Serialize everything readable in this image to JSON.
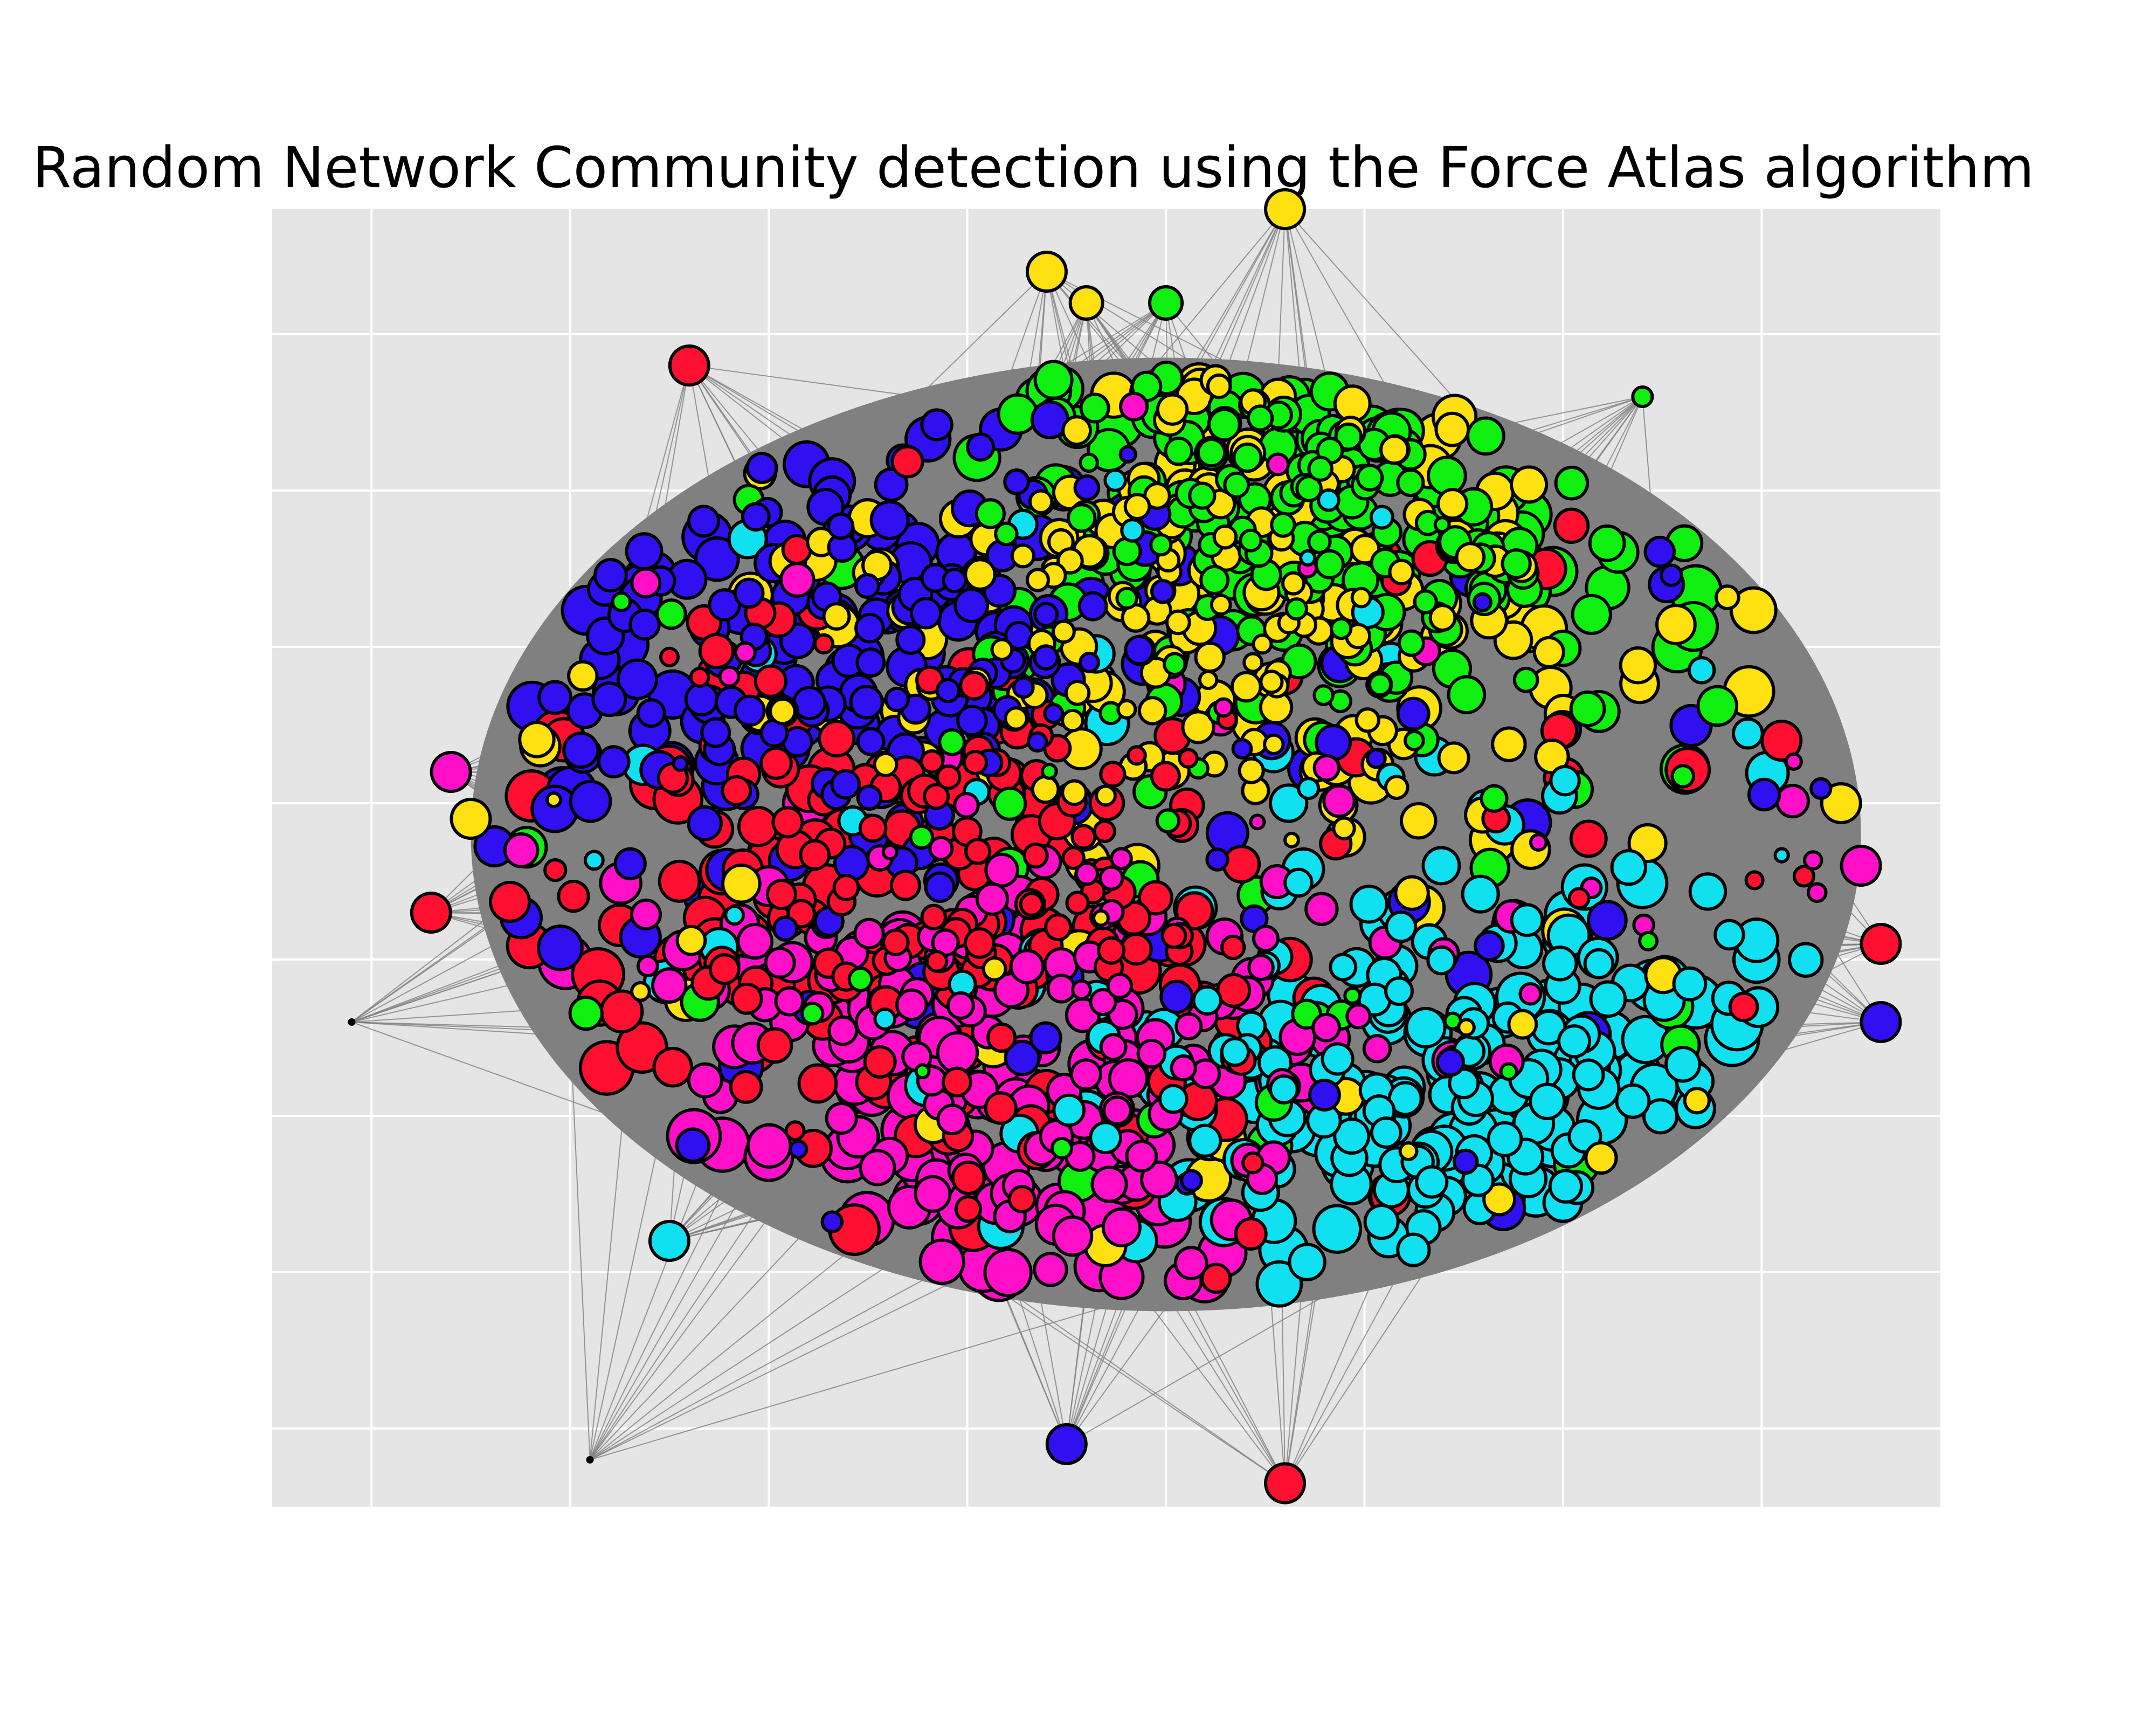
{
  "title": "Random Network Community detection using the Force Atlas algorithm",
  "style": {
    "background": "#e5e5e5",
    "grid_color": "#ffffff",
    "edge_color": "#808080",
    "node_stroke": "#000000"
  },
  "communities": [
    {
      "name": "red",
      "color": "#ff1030"
    },
    {
      "name": "magenta",
      "color": "#ff10c8"
    },
    {
      "name": "cyan",
      "color": "#10e0f0"
    },
    {
      "name": "green",
      "color": "#10f010"
    },
    {
      "name": "yellow",
      "color": "#ffe010"
    },
    {
      "name": "blue",
      "color": "#3010f0"
    }
  ],
  "chart_data": {
    "type": "scatter",
    "title": "Random Network Community detection using the Force Atlas algorithm",
    "xlabel": "",
    "ylabel": "",
    "grid": true,
    "axis_tick_labels": false,
    "xlim": [
      -0.5,
      7.9
    ],
    "ylim": [
      -0.5,
      7.8
    ],
    "hub_density_center": [
      4.0,
      4.6
    ],
    "cluster_centers": [
      {
        "community": "yellow",
        "x": 4.3,
        "y": 5.3
      },
      {
        "community": "green",
        "x": 4.9,
        "y": 5.9
      },
      {
        "community": "blue",
        "x": 2.1,
        "y": 4.9
      },
      {
        "community": "red",
        "x": 2.8,
        "y": 3.5
      },
      {
        "community": "magenta",
        "x": 3.2,
        "y": 2.2
      },
      {
        "community": "cyan",
        "x": 5.6,
        "y": 2.2
      }
    ],
    "outliers": [
      {
        "community": "yellow",
        "x": 4.6,
        "y": 7.8,
        "size": 3
      },
      {
        "community": "yellow",
        "x": 3.4,
        "y": 7.4,
        "size": 3
      },
      {
        "community": "yellow",
        "x": 3.6,
        "y": 7.2,
        "size": 2.5
      },
      {
        "community": "green",
        "x": 4.0,
        "y": 7.2,
        "size": 2.5
      },
      {
        "community": "red",
        "x": 1.6,
        "y": 6.8,
        "size": 3
      },
      {
        "community": "magenta",
        "x": 0.4,
        "y": 4.2,
        "size": 3
      },
      {
        "community": "yellow",
        "x": 0.5,
        "y": 3.9,
        "size": 3
      },
      {
        "community": "red",
        "x": 0.3,
        "y": 3.3,
        "size": 3
      },
      {
        "community": "none",
        "x": -0.1,
        "y": 2.6,
        "size": 0.5
      },
      {
        "community": "none",
        "x": 1.1,
        "y": -0.2,
        "size": 0.5
      },
      {
        "community": "red",
        "x": 4.6,
        "y": -0.35,
        "size": 3
      },
      {
        "community": "blue",
        "x": 3.5,
        "y": -0.1,
        "size": 3
      },
      {
        "community": "cyan",
        "x": 1.5,
        "y": 1.2,
        "size": 3
      },
      {
        "community": "blue",
        "x": 7.6,
        "y": 2.6,
        "size": 3
      },
      {
        "community": "red",
        "x": 7.6,
        "y": 3.1,
        "size": 3
      },
      {
        "community": "magenta",
        "x": 7.5,
        "y": 3.6,
        "size": 3
      },
      {
        "community": "yellow",
        "x": 7.4,
        "y": 4.0,
        "size": 3
      },
      {
        "community": "red",
        "x": 7.1,
        "y": 4.4,
        "size": 3
      },
      {
        "community": "green",
        "x": 6.4,
        "y": 6.6,
        "size": 1.5
      }
    ]
  }
}
